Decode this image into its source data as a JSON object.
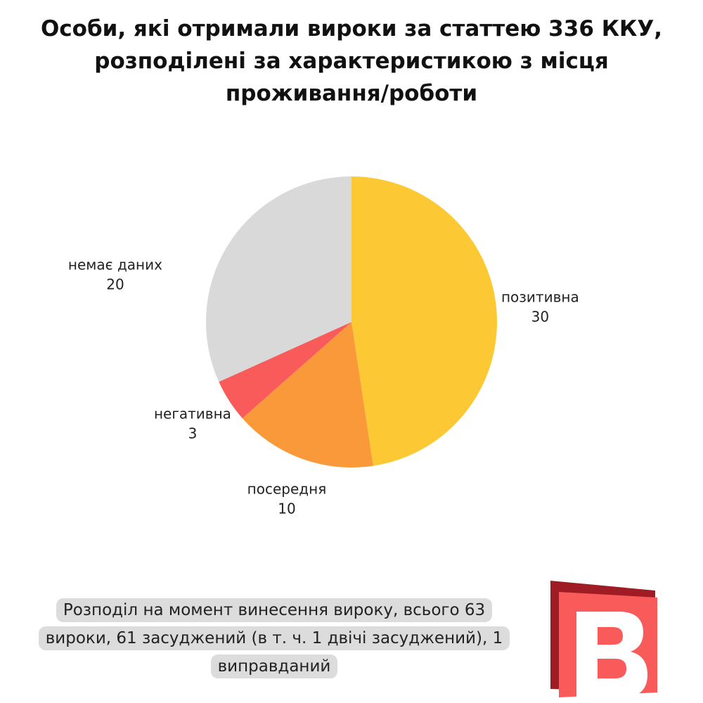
{
  "chart_data": {
    "type": "pie",
    "title": "Особи, які отримали вироки за статтею 336 ККУ, розподілені за характеристикою з місця проживання/роботи",
    "categories": [
      "позитивна",
      "посередня",
      "негативна",
      "немає даних"
    ],
    "values": [
      30,
      10,
      3,
      20
    ],
    "colors": [
      "#fcc934",
      "#fa9939",
      "#f95a5a",
      "#d9d9d9"
    ],
    "note": "Розподіл на момент винесення вироку, всього 63 вироки, 61 засуджений (в т. ч. 1 двічі засуджений), 1 виправданий"
  }
}
